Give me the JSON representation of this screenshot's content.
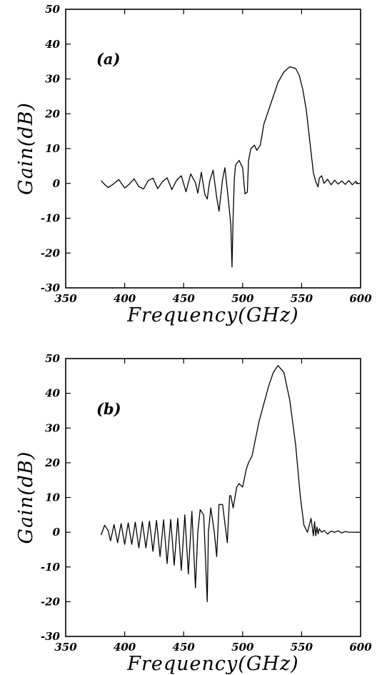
{
  "chart_data": [
    {
      "type": "line",
      "panel_label": "(a)",
      "xlabel": "Frequency(GHz)",
      "ylabel": "Gain(dB)",
      "xlim": [
        350,
        600
      ],
      "ylim": [
        -30,
        50
      ],
      "x_ticks": [
        350,
        400,
        450,
        500,
        550,
        600
      ],
      "y_ticks": [
        -30,
        -20,
        -10,
        0,
        10,
        20,
        30,
        40,
        50
      ],
      "grid": false,
      "series": [
        {
          "x": [
            380,
            383,
            386,
            390,
            395,
            400,
            404,
            408,
            412,
            416,
            420,
            424,
            428,
            432,
            436,
            440,
            444,
            448,
            452,
            456,
            460,
            462,
            465,
            468,
            470,
            472,
            475,
            478,
            480,
            483,
            485,
            488,
            490,
            491,
            492,
            493,
            494,
            497,
            500,
            502,
            504,
            505,
            507,
            510,
            512,
            515,
            518,
            520,
            525,
            530,
            535,
            540,
            545,
            548,
            551,
            554,
            557,
            560,
            562,
            564,
            565,
            567,
            569,
            572,
            575,
            578,
            581,
            584,
            587,
            590,
            593,
            596,
            598
          ],
          "y": [
            0.8,
            -0.3,
            -1.2,
            -0.3,
            1.1,
            -1.3,
            -0.2,
            1.3,
            -0.9,
            -1.6,
            0.8,
            1.5,
            -1.5,
            0.5,
            1.6,
            -1.8,
            0.9,
            2.2,
            -2.4,
            2.7,
            0.2,
            -2.8,
            3.2,
            -3.2,
            -4.5,
            0.5,
            3.8,
            -4.0,
            -8,
            1.2,
            4.5,
            -5,
            -12,
            -24,
            -9,
            1.5,
            5.2,
            6.6,
            4.5,
            -3,
            -2.5,
            6.5,
            10,
            11,
            9.5,
            11,
            17,
            19,
            24,
            29,
            32,
            33.5,
            33,
            31,
            27,
            21,
            12,
            3,
            0.5,
            -1,
            1.5,
            2.2,
            0,
            1.2,
            -0.4,
            0.9,
            -0.2,
            0.7,
            -0.3,
            0.8,
            -0.4,
            0.6,
            -0.2
          ]
        }
      ]
    },
    {
      "type": "line",
      "panel_label": "(b)",
      "xlabel": "Frequency(GHz)",
      "ylabel": "Gain(dB)",
      "xlim": [
        350,
        600
      ],
      "ylim": [
        -30,
        50
      ],
      "x_ticks": [
        350,
        400,
        450,
        500,
        550,
        600
      ],
      "y_ticks": [
        -30,
        -20,
        -10,
        0,
        10,
        20,
        30,
        40,
        50
      ],
      "grid": false,
      "series": [
        {
          "x": [
            380,
            383,
            386,
            388,
            391,
            394,
            397,
            400,
            403,
            406,
            409,
            412,
            415,
            418,
            421,
            424,
            427,
            430,
            433,
            436,
            439,
            442,
            445,
            448,
            451,
            454,
            457,
            460,
            462,
            464,
            467,
            470,
            471,
            473,
            476,
            478,
            480,
            483,
            487,
            489,
            490,
            492,
            495,
            497,
            500,
            503,
            505,
            508,
            511,
            514,
            518,
            522,
            526,
            530,
            535,
            540,
            545,
            549,
            552,
            555,
            558,
            560,
            561,
            562,
            563,
            564,
            565,
            567,
            569,
            572,
            575,
            578,
            581,
            584,
            587,
            590,
            594,
            598
          ],
          "y": [
            -0.8,
            2,
            0.5,
            -2.5,
            2.2,
            -3,
            2.5,
            -3.5,
            2.7,
            -3.5,
            2.9,
            -4.5,
            3,
            -4.5,
            3.2,
            -5.5,
            3.4,
            -7,
            3.6,
            -9,
            3.7,
            -9.5,
            4,
            -11,
            5,
            -12,
            6,
            -16,
            0,
            6.5,
            5,
            -20,
            0,
            7,
            0,
            -7,
            8,
            8,
            -3,
            10.5,
            10.5,
            7,
            13,
            14,
            13,
            18,
            20,
            22,
            27,
            32,
            37,
            42,
            46,
            48,
            46,
            38,
            25,
            10,
            2,
            0,
            4,
            -1,
            3,
            -1,
            1.5,
            -0.5,
            1,
            0,
            0.5,
            -0.5,
            0.3,
            0,
            0.4,
            -0.2,
            0.2,
            0,
            0,
            0
          ]
        }
      ]
    }
  ]
}
